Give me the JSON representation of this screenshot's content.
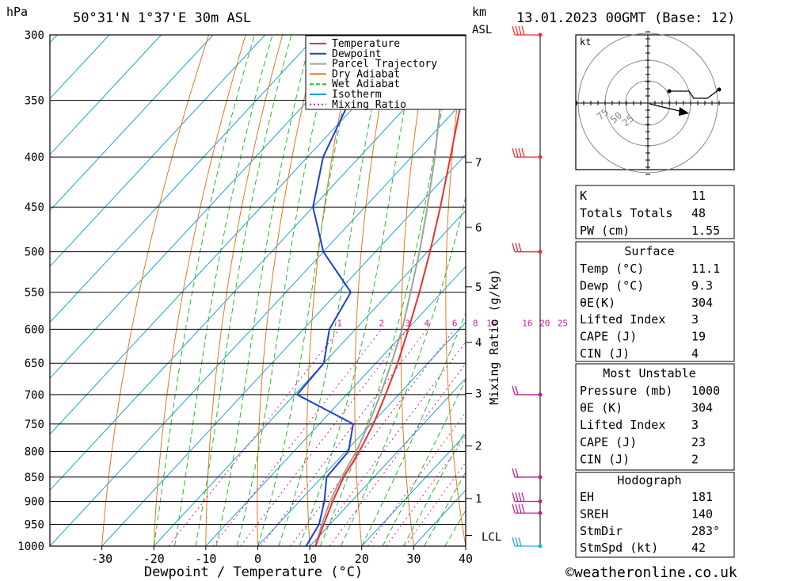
{
  "header": {
    "unit_left": "hPa",
    "location": "50°31'N 1°37'E 30m ASL",
    "unit_km": "km",
    "unit_asl": "ASL",
    "datetime": "13.01.2023 00GMT (Base: 12)"
  },
  "chart_data": {
    "type": "line",
    "title": "50°31'N 1°37'E 30m ASL",
    "xlabel": "Dewpoint / Temperature (°C)",
    "ylabel": "hPa",
    "y2label": "Mixing Ratio (g/kg)",
    "xlim": [
      -40,
      40
    ],
    "ylim": [
      1000,
      300
    ],
    "y_scale": "log",
    "x_ticks": [
      -30,
      -20,
      -10,
      0,
      10,
      20,
      30,
      40
    ],
    "pressure_levels": [
      300,
      350,
      400,
      450,
      500,
      550,
      600,
      650,
      700,
      750,
      800,
      850,
      900,
      950,
      1000
    ],
    "km_ticks": [
      {
        "km": "7",
        "p": 405
      },
      {
        "km": "6",
        "p": 472
      },
      {
        "km": "5",
        "p": 543
      },
      {
        "km": "4",
        "p": 619
      },
      {
        "km": "3",
        "p": 698
      },
      {
        "km": "2",
        "p": 790
      },
      {
        "km": "1",
        "p": 894
      }
    ],
    "lcl_label": "LCL",
    "lcl_p": 975,
    "mixing_ratio_labels": [
      "1",
      "2",
      "3",
      "4",
      "6",
      "8",
      "10",
      "16",
      "20",
      "25"
    ],
    "legend": [
      "Temperature",
      "Dewpoint",
      "Parcel Trajectory",
      "Dry Adiabat",
      "Wet Adiabat",
      "Isotherm",
      "Mixing Ratio"
    ],
    "legend_position": "top-right",
    "colors": {
      "temperature": "#e8312f",
      "dewpoint": "#1f3fd0",
      "parcel": "#a0a0a0",
      "dry_adiabat": "#e07a1f",
      "wet_adiabat": "#2db82d",
      "isotherm": "#1ea0dc",
      "mixing_ratio": "#d0209a"
    },
    "series": [
      {
        "name": "Temperature",
        "p": [
          1000,
          950,
          900,
          850,
          800,
          750,
          700,
          650,
          600,
          550,
          500,
          450,
          400,
          350,
          300
        ],
        "values": [
          11.1,
          8.8,
          6.4,
          4.2,
          2.6,
          0.4,
          -2.5,
          -5.8,
          -9.8,
          -14.3,
          -19.5,
          -25.5,
          -32.5,
          -40.5,
          -50.0
        ]
      },
      {
        "name": "Dewpoint",
        "p": [
          1000,
          950,
          900,
          850,
          800,
          750,
          700,
          650,
          600,
          550,
          500,
          450,
          400,
          350,
          300
        ],
        "values": [
          9.3,
          7.9,
          4.8,
          0.9,
          0.5,
          -3.5,
          -19.5,
          -20.0,
          -25.0,
          -27.5,
          -40.0,
          -50.0,
          -57.0,
          -62.0,
          -70.0
        ]
      },
      {
        "name": "Parcel Trajectory",
        "p": [
          1000,
          950,
          900,
          850,
          800,
          750,
          700,
          650,
          600,
          550,
          500,
          450,
          400,
          350,
          300
        ],
        "values": [
          11.1,
          8.4,
          5.9,
          3.8,
          2.0,
          -0.5,
          -3.5,
          -7.0,
          -11.0,
          -16.0,
          -21.5,
          -28.0,
          -35.5,
          -44.5,
          -55.0
        ]
      }
    ],
    "winds": [
      {
        "p": 300,
        "flags": "4"
      },
      {
        "p": 400,
        "flags": "4"
      },
      {
        "p": 500,
        "flags": "3"
      },
      {
        "p": 700,
        "flags": "2"
      },
      {
        "p": 850,
        "flags": "2"
      },
      {
        "p": 900,
        "flags": "4"
      },
      {
        "p": 925,
        "flags": "4"
      },
      {
        "p": 1000,
        "flags": "3"
      }
    ]
  },
  "hodograph": {
    "unit": "kt",
    "ring_labels": [
      "25",
      "50",
      "75"
    ]
  },
  "indices": [
    {
      "label": "K",
      "value": "11"
    },
    {
      "label": "Totals Totals",
      "value": "48"
    },
    {
      "label": "PW (cm)",
      "value": "1.55"
    }
  ],
  "surface": {
    "title": "Surface",
    "rows": [
      {
        "label": "Temp (°C)",
        "value": "11.1"
      },
      {
        "label": "Dewp (°C)",
        "value": "9.3"
      },
      {
        "label": "θE(K)",
        "value": "304"
      },
      {
        "label": "Lifted Index",
        "value": "3"
      },
      {
        "label": "CAPE (J)",
        "value": "19"
      },
      {
        "label": "CIN (J)",
        "value": "4"
      }
    ]
  },
  "most_unstable": {
    "title": "Most Unstable",
    "rows": [
      {
        "label": "Pressure (mb)",
        "value": "1000"
      },
      {
        "label": "θE (K)",
        "value": "304"
      },
      {
        "label": "Lifted Index",
        "value": "3"
      },
      {
        "label": "CAPE (J)",
        "value": "23"
      },
      {
        "label": "CIN (J)",
        "value": "2"
      }
    ]
  },
  "hodograph_table": {
    "title": "Hodograph",
    "rows": [
      {
        "label": "EH",
        "value": "181"
      },
      {
        "label": "SREH",
        "value": "140"
      },
      {
        "label": "StmDir",
        "value": "283°"
      },
      {
        "label": "StmSpd (kt)",
        "value": "42"
      }
    ]
  },
  "footer": {
    "credit": "©weatheronline.co.uk"
  }
}
